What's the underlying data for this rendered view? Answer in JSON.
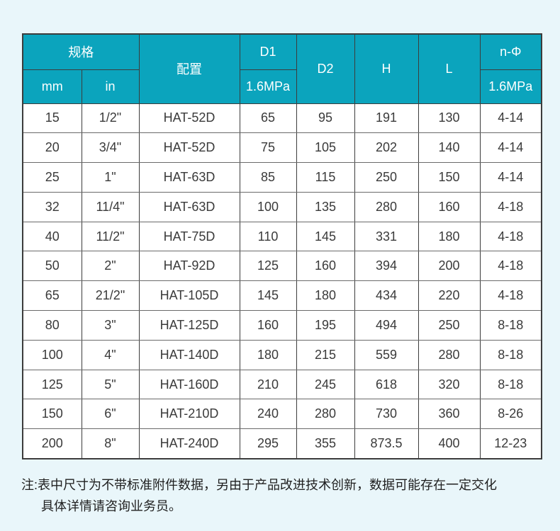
{
  "page": {
    "background_color": "#e9f6fa"
  },
  "table": {
    "colors": {
      "header_bg": "#0ba4bd",
      "header_text": "#ffffff",
      "border": "#3c3c3c",
      "body_bg": "#ffffff",
      "body_text": "#3a3a3a"
    },
    "header": {
      "spec_group": "规格",
      "col_mm": "mm",
      "col_in": "in",
      "col_config": "配置",
      "col_d1": "D1",
      "col_d1_sub": "1.6MPa",
      "col_d2": "D2",
      "col_h": "H",
      "col_l": "L",
      "col_nphi": "n-Φ",
      "col_nphi_sub": "1.6MPa"
    },
    "rows": [
      [
        "15",
        "1/2\"",
        "HAT-52D",
        "65",
        "95",
        "191",
        "130",
        "4-14"
      ],
      [
        "20",
        "3/4\"",
        "HAT-52D",
        "75",
        "105",
        "202",
        "140",
        "4-14"
      ],
      [
        "25",
        "1\"",
        "HAT-63D",
        "85",
        "115",
        "250",
        "150",
        "4-14"
      ],
      [
        "32",
        "11/4\"",
        "HAT-63D",
        "100",
        "135",
        "280",
        "160",
        "4-18"
      ],
      [
        "40",
        "11/2\"",
        "HAT-75D",
        "110",
        "145",
        "331",
        "180",
        "4-18"
      ],
      [
        "50",
        "2\"",
        "HAT-92D",
        "125",
        "160",
        "394",
        "200",
        "4-18"
      ],
      [
        "65",
        "21/2\"",
        "HAT-105D",
        "145",
        "180",
        "434",
        "220",
        "4-18"
      ],
      [
        "80",
        "3\"",
        "HAT-125D",
        "160",
        "195",
        "494",
        "250",
        "8-18"
      ],
      [
        "100",
        "4\"",
        "HAT-140D",
        "180",
        "215",
        "559",
        "280",
        "8-18"
      ],
      [
        "125",
        "5\"",
        "HAT-160D",
        "210",
        "245",
        "618",
        "320",
        "8-18"
      ],
      [
        "150",
        "6\"",
        "HAT-210D",
        "240",
        "280",
        "730",
        "360",
        "8-26"
      ],
      [
        "200",
        "8\"",
        "HAT-240D",
        "295",
        "355",
        "873.5",
        "400",
        "12-23"
      ]
    ]
  },
  "note": {
    "line1": "注:表中尺寸为不带标准附件数据，另由于产品改进技术创新，数据可能存在一定交化",
    "line2": "具体详情请咨询业务员。"
  }
}
